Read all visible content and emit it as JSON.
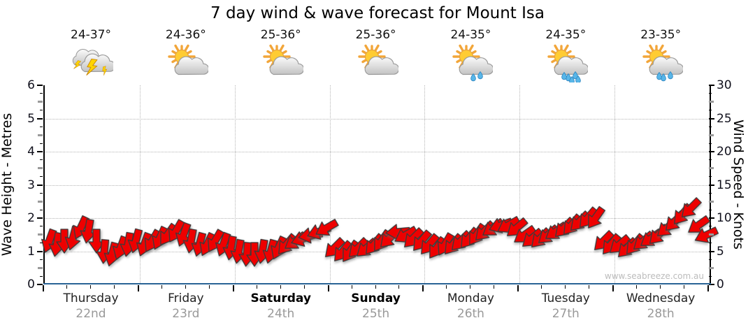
{
  "title": "7 day wind & wave forecast for Mount Isa",
  "watermark": "www.seabreeze.com.au",
  "days": [
    {
      "name": "Thursday",
      "date": "22nd",
      "temp": "24-37°",
      "icon": "storm",
      "drops": 0,
      "bold": false
    },
    {
      "name": "Friday",
      "date": "23rd",
      "temp": "24-36°",
      "icon": "sun-cloud",
      "drops": 0,
      "bold": false
    },
    {
      "name": "Saturday",
      "date": "24th",
      "temp": "25-36°",
      "icon": "sun-cloud",
      "drops": 0,
      "bold": true
    },
    {
      "name": "Sunday",
      "date": "25th",
      "temp": "25-36°",
      "icon": "sun-cloud",
      "drops": 0,
      "bold": true
    },
    {
      "name": "Monday",
      "date": "26th",
      "temp": "24-35°",
      "icon": "sun-cloud",
      "drops": 2,
      "bold": false
    },
    {
      "name": "Tuesday",
      "date": "27th",
      "temp": "24-35°",
      "icon": "sun-cloud",
      "drops": 5,
      "bold": false
    },
    {
      "name": "Wednesday",
      "date": "28th",
      "temp": "23-35°",
      "icon": "sun-cloud",
      "drops": 3,
      "bold": false
    }
  ],
  "left_axis": {
    "label": "Wave Height - Metres",
    "ticks": [
      0,
      1,
      2,
      3,
      4,
      5,
      6
    ]
  },
  "right_axis": {
    "label": "Wind Speed - Knots",
    "ticks": [
      0,
      5,
      10,
      15,
      20,
      25,
      30
    ]
  },
  "colors": {
    "arrow_fill": "#ee0000",
    "arrow_outline": "#3a3a3a",
    "bottom_axis": "#2a6496",
    "grid": "#b5b5b5",
    "date_text": "#999999",
    "watermark_text": "#bcbcbc"
  },
  "chart_data": {
    "type": "wind-arrow-series",
    "title": "7 day wind & wave forecast for Mount Isa",
    "x_categories": [
      "Thursday 22nd",
      "Friday 23rd",
      "Saturday 24th",
      "Sunday 25th",
      "Monday 26th",
      "Tuesday 27th",
      "Wednesday 28th"
    ],
    "points_per_day": 12,
    "ylabel_left": "Wave Height - Metres",
    "ylim_left": [
      0,
      6
    ],
    "ylabel_right": "Wind Speed - Knots",
    "ylim_right": [
      0,
      30
    ],
    "grid": "dotted at major ticks and day boundaries",
    "series": [
      {
        "name": "Wind Speed (knots)",
        "values": [
          6.5,
          6,
          6.5,
          7,
          8.5,
          8,
          6.5,
          5,
          4.5,
          5.5,
          6,
          6.5,
          6,
          6.5,
          7,
          7.5,
          8,
          7.5,
          6.5,
          6,
          6,
          6.5,
          6,
          5.5,
          5,
          4.5,
          4.5,
          5,
          5,
          5.5,
          6,
          6.5,
          7,
          7.5,
          8,
          8.5,
          5.5,
          5,
          5,
          5.5,
          5.5,
          6,
          6.5,
          7,
          8,
          7.5,
          7,
          6.5,
          6,
          5.5,
          6,
          6,
          6.5,
          7,
          7.5,
          8,
          8.5,
          9,
          9,
          8.5,
          7.5,
          7,
          7,
          7.5,
          8,
          8.5,
          9,
          9.5,
          10,
          10,
          6.5,
          6,
          6,
          5.5,
          6,
          6.5,
          7,
          7.5,
          8.5,
          9.5,
          10.5,
          11.5,
          9,
          7.5
        ],
        "arrow_rotation_deg_clockwise_from_south": [
          20,
          10,
          0,
          15,
          25,
          10,
          0,
          5,
          15,
          20,
          10,
          15,
          20,
          30,
          25,
          35,
          30,
          20,
          10,
          15,
          25,
          30,
          20,
          10,
          10,
          5,
          0,
          10,
          15,
          25,
          40,
          55,
          70,
          80,
          70,
          60,
          45,
          40,
          35,
          45,
          50,
          40,
          35,
          45,
          85,
          60,
          45,
          40,
          40,
          35,
          30,
          40,
          45,
          40,
          35,
          45,
          55,
          70,
          60,
          50,
          55,
          50,
          45,
          50,
          55,
          45,
          40,
          45,
          40,
          35,
          45,
          40,
          50,
          45,
          40,
          50,
          55,
          45,
          50,
          45,
          40,
          45,
          55,
          65
        ]
      }
    ]
  }
}
